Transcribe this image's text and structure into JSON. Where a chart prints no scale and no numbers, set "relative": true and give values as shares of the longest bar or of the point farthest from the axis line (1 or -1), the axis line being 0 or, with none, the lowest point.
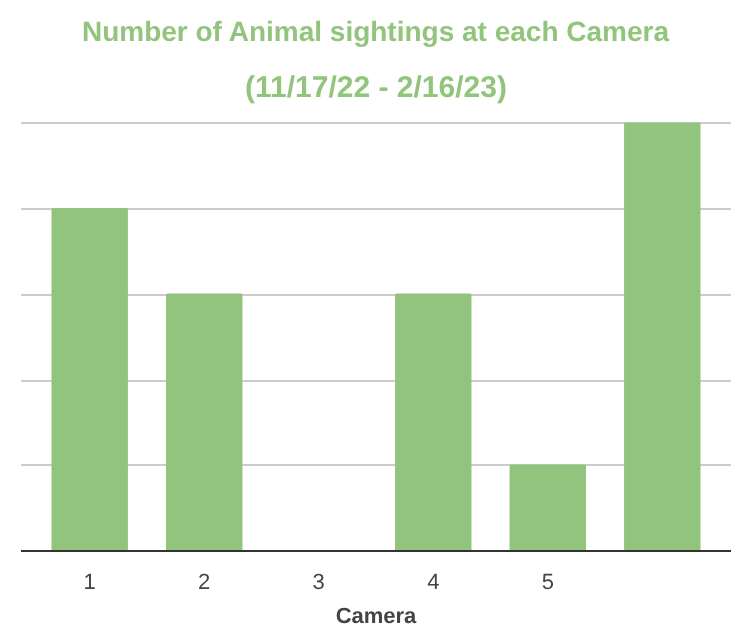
{
  "chart_data": {
    "type": "bar",
    "title": "Number of Animal sightings at each Camera",
    "subtitle": "(11/17/22 - 2/16/23)",
    "xlabel": "Camera",
    "categories": [
      "1",
      "2",
      "3",
      "4",
      "5",
      null
    ],
    "values": [
      0.8,
      0.6,
      0,
      0.6,
      0.2,
      1
    ],
    "color": "#93c47d",
    "relative": true,
    "grid": "y"
  }
}
